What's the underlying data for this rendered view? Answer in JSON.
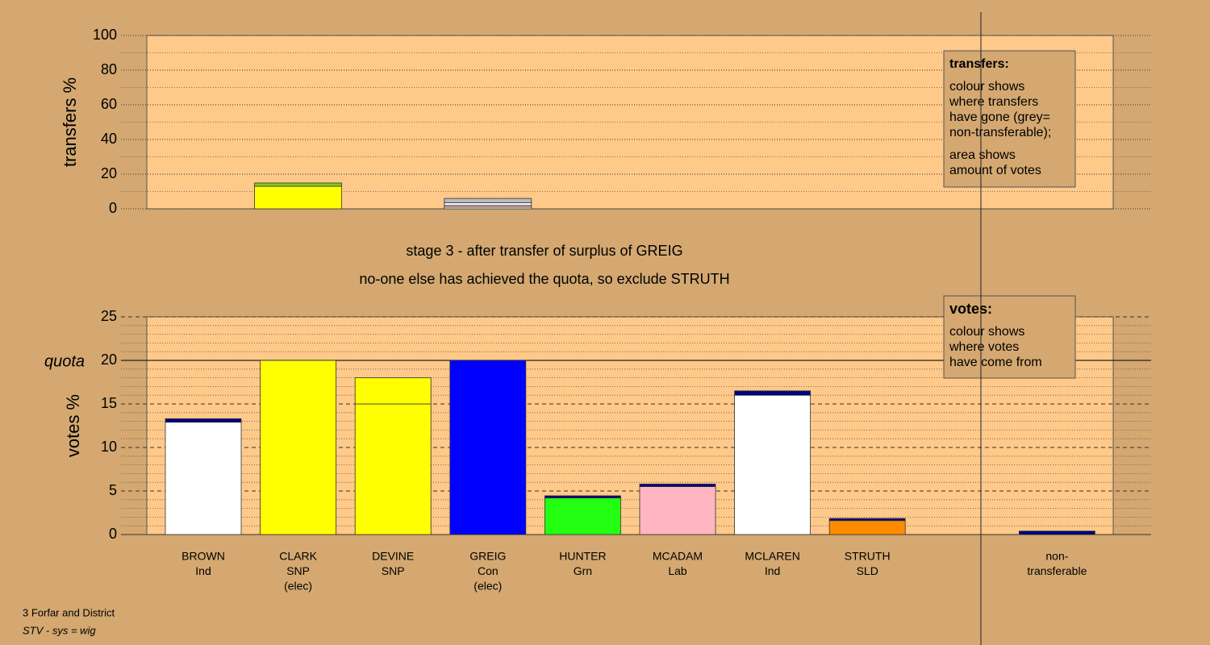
{
  "captions": [
    "stage 3 - after transfer of surplus of GREIG",
    "no-one else has achieved the quota, so exclude STRUTH"
  ],
  "footer": [
    "3 Forfar and District",
    "STV - sys = wig"
  ],
  "chart_data": [
    {
      "type": "stacked-bar",
      "ylabel": "transfers %",
      "ylim": [
        0,
        100
      ],
      "yticks": [
        0,
        20,
        40,
        60,
        80,
        100
      ],
      "minor_yticks": [
        10,
        30,
        50,
        70,
        90
      ],
      "segments": [
        [],
        [
          {
            "value": 13,
            "color": "#ffff00"
          },
          {
            "value": 1.9,
            "color": "#7ccc1e"
          }
        ],
        [],
        [
          {
            "value": 1,
            "color": "#ffffff"
          },
          {
            "value": 1,
            "color": "#ffb6c1"
          },
          {
            "value": 1.5,
            "color": "#ffffff"
          },
          {
            "value": 2.5,
            "color": "#bbbbbb"
          }
        ],
        [],
        [],
        [],
        [],
        []
      ],
      "legend": {
        "title": "transfers:",
        "paragraphs": [
          [
            "colour shows",
            "where transfers",
            "have gone (grey=",
            "non-transferable);"
          ],
          [
            "area shows",
            "amount of votes"
          ]
        ]
      }
    },
    {
      "type": "stacked-bar",
      "ylabel": "votes %",
      "categories": [
        [
          "BROWN",
          "Ind"
        ],
        [
          "CLARK",
          "SNP",
          "(elec)"
        ],
        [
          "DEVINE",
          "SNP"
        ],
        [
          "GREIG",
          "Con",
          "(elec)"
        ],
        [
          "HUNTER",
          "Grn"
        ],
        [
          "MCADAM",
          "Lab"
        ],
        [
          "MCLAREN",
          "Ind"
        ],
        [
          "STRUTH",
          "SLD"
        ],
        [
          "non-",
          "transferable"
        ]
      ],
      "ylim": [
        0,
        25
      ],
      "yticks": [
        0,
        5,
        10,
        15,
        20,
        25
      ],
      "minor_yticks": [
        1,
        2,
        3,
        4,
        6,
        7,
        8,
        9,
        11,
        12,
        13,
        14,
        16,
        17,
        18,
        19,
        21,
        22,
        23,
        24
      ],
      "quota": {
        "value": 20,
        "label": "quota"
      },
      "segments": [
        [
          {
            "value": 12.9,
            "color": "#ffffff"
          },
          {
            "value": 0.4,
            "color": "#000080"
          }
        ],
        [
          {
            "value": 20,
            "color": "#ffff00"
          }
        ],
        [
          {
            "value": 15,
            "color": "#ffff00"
          },
          {
            "value": 3,
            "color": "#ffff00"
          }
        ],
        [
          {
            "value": 20,
            "color": "#0000ff"
          }
        ],
        [
          {
            "value": 4.2,
            "color": "#22ff11"
          },
          {
            "value": 0.25,
            "color": "#000080"
          }
        ],
        [
          {
            "value": 5.5,
            "color": "#ffb6c1"
          },
          {
            "value": 0.3,
            "color": "#000080"
          }
        ],
        [
          {
            "value": 16,
            "color": "#ffffff"
          },
          {
            "value": 0.5,
            "color": "#000080"
          }
        ],
        [
          {
            "value": 1.6,
            "color": "#ff8c00"
          },
          {
            "value": 0.25,
            "color": "#000080"
          }
        ],
        [
          {
            "value": 0.4,
            "color": "#000080"
          }
        ]
      ],
      "legend": {
        "title": "votes:",
        "paragraphs": [
          [
            "colour shows",
            "where votes",
            "have come from"
          ]
        ]
      }
    }
  ]
}
